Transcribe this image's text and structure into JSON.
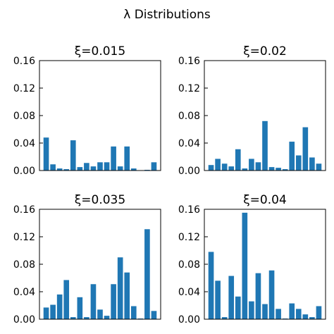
{
  "figure": {
    "title": "λ Distributions",
    "bar_color": "#1f77b4",
    "axis_color": "#000000"
  },
  "chart_data": [
    {
      "type": "bar",
      "title": "ξ=0.015",
      "xlabel": "",
      "ylabel": "",
      "ylim": [
        0,
        0.16
      ],
      "yticks": [
        "0.00",
        "0.04",
        "0.08",
        "0.12",
        "0.16"
      ],
      "grid": false,
      "values": [
        0.048,
        0.009,
        0.003,
        0.002,
        0.044,
        0.005,
        0.011,
        0.006,
        0.012,
        0.012,
        0.035,
        0.006,
        0.035,
        0.003,
        0.0,
        0.001,
        0.012
      ]
    },
    {
      "type": "bar",
      "title": "ξ=0.02",
      "xlabel": "",
      "ylabel": "",
      "ylim": [
        0,
        0.16
      ],
      "yticks": [
        "0.00",
        "0.04",
        "0.08",
        "0.12",
        "0.16"
      ],
      "grid": false,
      "values": [
        0.008,
        0.017,
        0.01,
        0.006,
        0.031,
        0.003,
        0.017,
        0.012,
        0.072,
        0.005,
        0.004,
        0.002,
        0.042,
        0.022,
        0.063,
        0.019,
        0.01
      ]
    },
    {
      "type": "bar",
      "title": "ξ=0.035",
      "xlabel": "",
      "ylabel": "",
      "ylim": [
        0,
        0.16
      ],
      "yticks": [
        "0.00",
        "0.04",
        "0.08",
        "0.12",
        "0.16"
      ],
      "grid": false,
      "values": [
        0.017,
        0.021,
        0.036,
        0.057,
        0.003,
        0.032,
        0.003,
        0.051,
        0.014,
        0.005,
        0.051,
        0.09,
        0.068,
        0.019,
        0.001,
        0.131,
        0.012
      ]
    },
    {
      "type": "bar",
      "title": "ξ=0.04",
      "xlabel": "",
      "ylabel": "",
      "ylim": [
        0,
        0.16
      ],
      "yticks": [
        "0.00",
        "0.04",
        "0.08",
        "0.12",
        "0.16"
      ],
      "grid": false,
      "values": [
        0.098,
        0.056,
        0.003,
        0.063,
        0.033,
        0.155,
        0.026,
        0.067,
        0.022,
        0.071,
        0.015,
        0.001,
        0.023,
        0.015,
        0.007,
        0.003,
        0.019
      ]
    }
  ]
}
